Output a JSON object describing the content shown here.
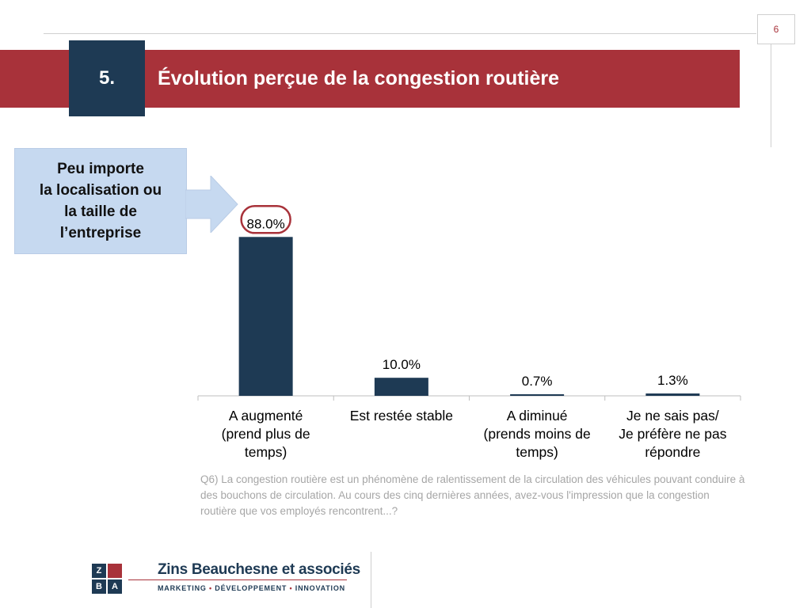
{
  "page_number": "6",
  "section_number": "5.",
  "title": "Évolution perçue de la congestion routière",
  "note_box": {
    "lines": [
      "Peu importe",
      "la localisation ou",
      "la taille de",
      "l’entreprise"
    ]
  },
  "chart_data": {
    "type": "bar",
    "categories": [
      [
        "A augmenté",
        "(prend plus de",
        "temps)"
      ],
      [
        "Est restée stable"
      ],
      [
        "A diminué",
        "(prends moins de",
        "temps)"
      ],
      [
        "Je ne sais pas/",
        "Je préfère ne pas",
        "répondre"
      ]
    ],
    "values": [
      88.0,
      10.0,
      0.7,
      1.3
    ],
    "value_labels": [
      "88.0%",
      "10.0%",
      "0.7%",
      "1.3%"
    ],
    "highlighted_index": 0,
    "ylim": [
      0,
      100
    ],
    "bar_color": "#1e3a54",
    "highlight_color": "#a8323a"
  },
  "question": "Q6) La congestion routière est un phénomène de ralentissement de la circulation des véhicules pouvant conduire à des bouchons de circulation. Au cours des cinq dernières années, avez-vous l'impression que la congestion routière que vos employés rencontrent...?",
  "footer": {
    "logo_letters": [
      "Z",
      "B",
      "A"
    ],
    "brand_name": "Zins Beauchesne et associés",
    "tagline_items": [
      "MARKETING",
      "DÉVELOPPEMENT",
      "INNOVATION"
    ],
    "tagline_separator": "•"
  },
  "colors": {
    "accent_red": "#a8323a",
    "navy": "#1e3a54",
    "light_blue": "#c6d9f0",
    "gray_text": "#a6a6a6"
  }
}
